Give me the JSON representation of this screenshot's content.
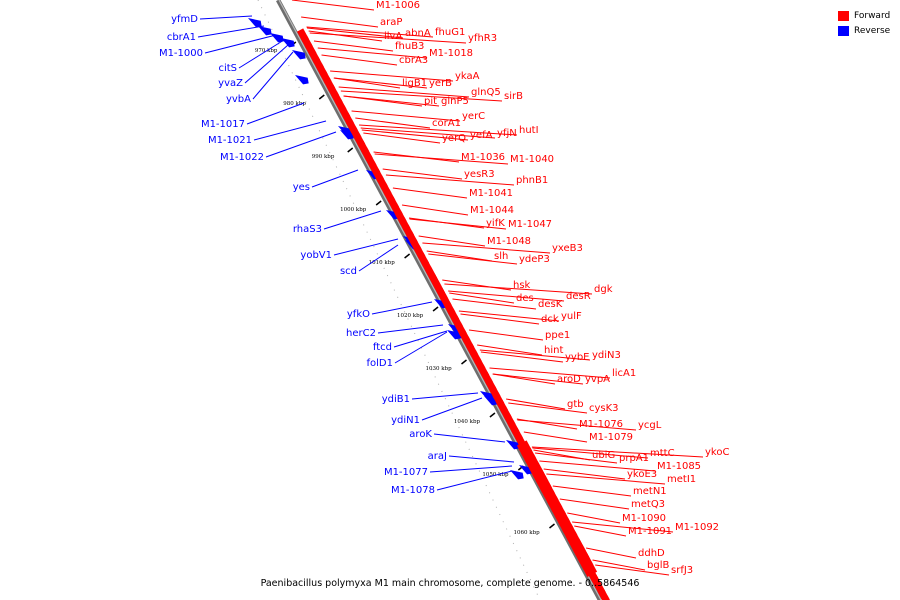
{
  "caption": "Paenibacillus polymyxa M1 main chromosome, complete genome. - 0..5864546",
  "legend": [
    {
      "label": "Forward",
      "color": "#ff0000"
    },
    {
      "label": "Reverse",
      "color": "#0000ff"
    }
  ],
  "colors": {
    "forward": "#ff0000",
    "reverse": "#0000ff",
    "backbone": "#808080"
  },
  "scale_ticks": [
    "970 kbp",
    "980 kbp",
    "990 kbp",
    "1000 kbp",
    "1010 kbp",
    "1020 kbp",
    "1030 kbp",
    "1040 kbp",
    "1050 kbp",
    "1060 kbp"
  ],
  "forward_genes": [
    "M1-1006",
    "araP",
    "ilvA",
    "abnA",
    "fhuG1",
    "yfhR3",
    "fhuB3",
    "M1-1018",
    "cbrA3",
    "ykaA",
    "ligB1",
    "yerB",
    "glnQ5",
    "sirB",
    "pit",
    "glnP5",
    "yerC",
    "corA1",
    "hutI",
    "yerQ",
    "yefA",
    "yfjN",
    "M1-1036",
    "M1-1040",
    "yesR3",
    "phnB1",
    "M1-1041",
    "M1-1044",
    "yifK",
    "M1-1047",
    "M1-1048",
    "yxeB3",
    "slh",
    "ydeP3",
    "hsk",
    "dgk",
    "des",
    "desR",
    "desK",
    "dck",
    "yulF",
    "ppe1",
    "hint",
    "yybE",
    "ydiN3",
    "aroD",
    "yvpA",
    "licA1",
    "gtb",
    "cysK3",
    "M1-1076",
    "ycgL",
    "M1-1079",
    "ubiG",
    "prpA1",
    "mttC",
    "ykoC",
    "M1-1085",
    "ykoE3",
    "metI1",
    "metN1",
    "metQ3",
    "M1-1090",
    "M1-1091",
    "M1-1092",
    "ddhD",
    "bglB",
    "srfJ3"
  ],
  "reverse_genes": [
    "yfmD",
    "cbrA1",
    "M1-1000",
    "citS",
    "yvaZ",
    "yvbA",
    "M1-1017",
    "M1-1021",
    "M1-1022",
    "yes",
    "rhaS3",
    "yobV1",
    "scd",
    "yfkO",
    "herC2",
    "ftcd",
    "folD1",
    "ydiB1",
    "ydiN1",
    "aroK",
    "araJ",
    "M1-1077",
    "M1-1078"
  ]
}
